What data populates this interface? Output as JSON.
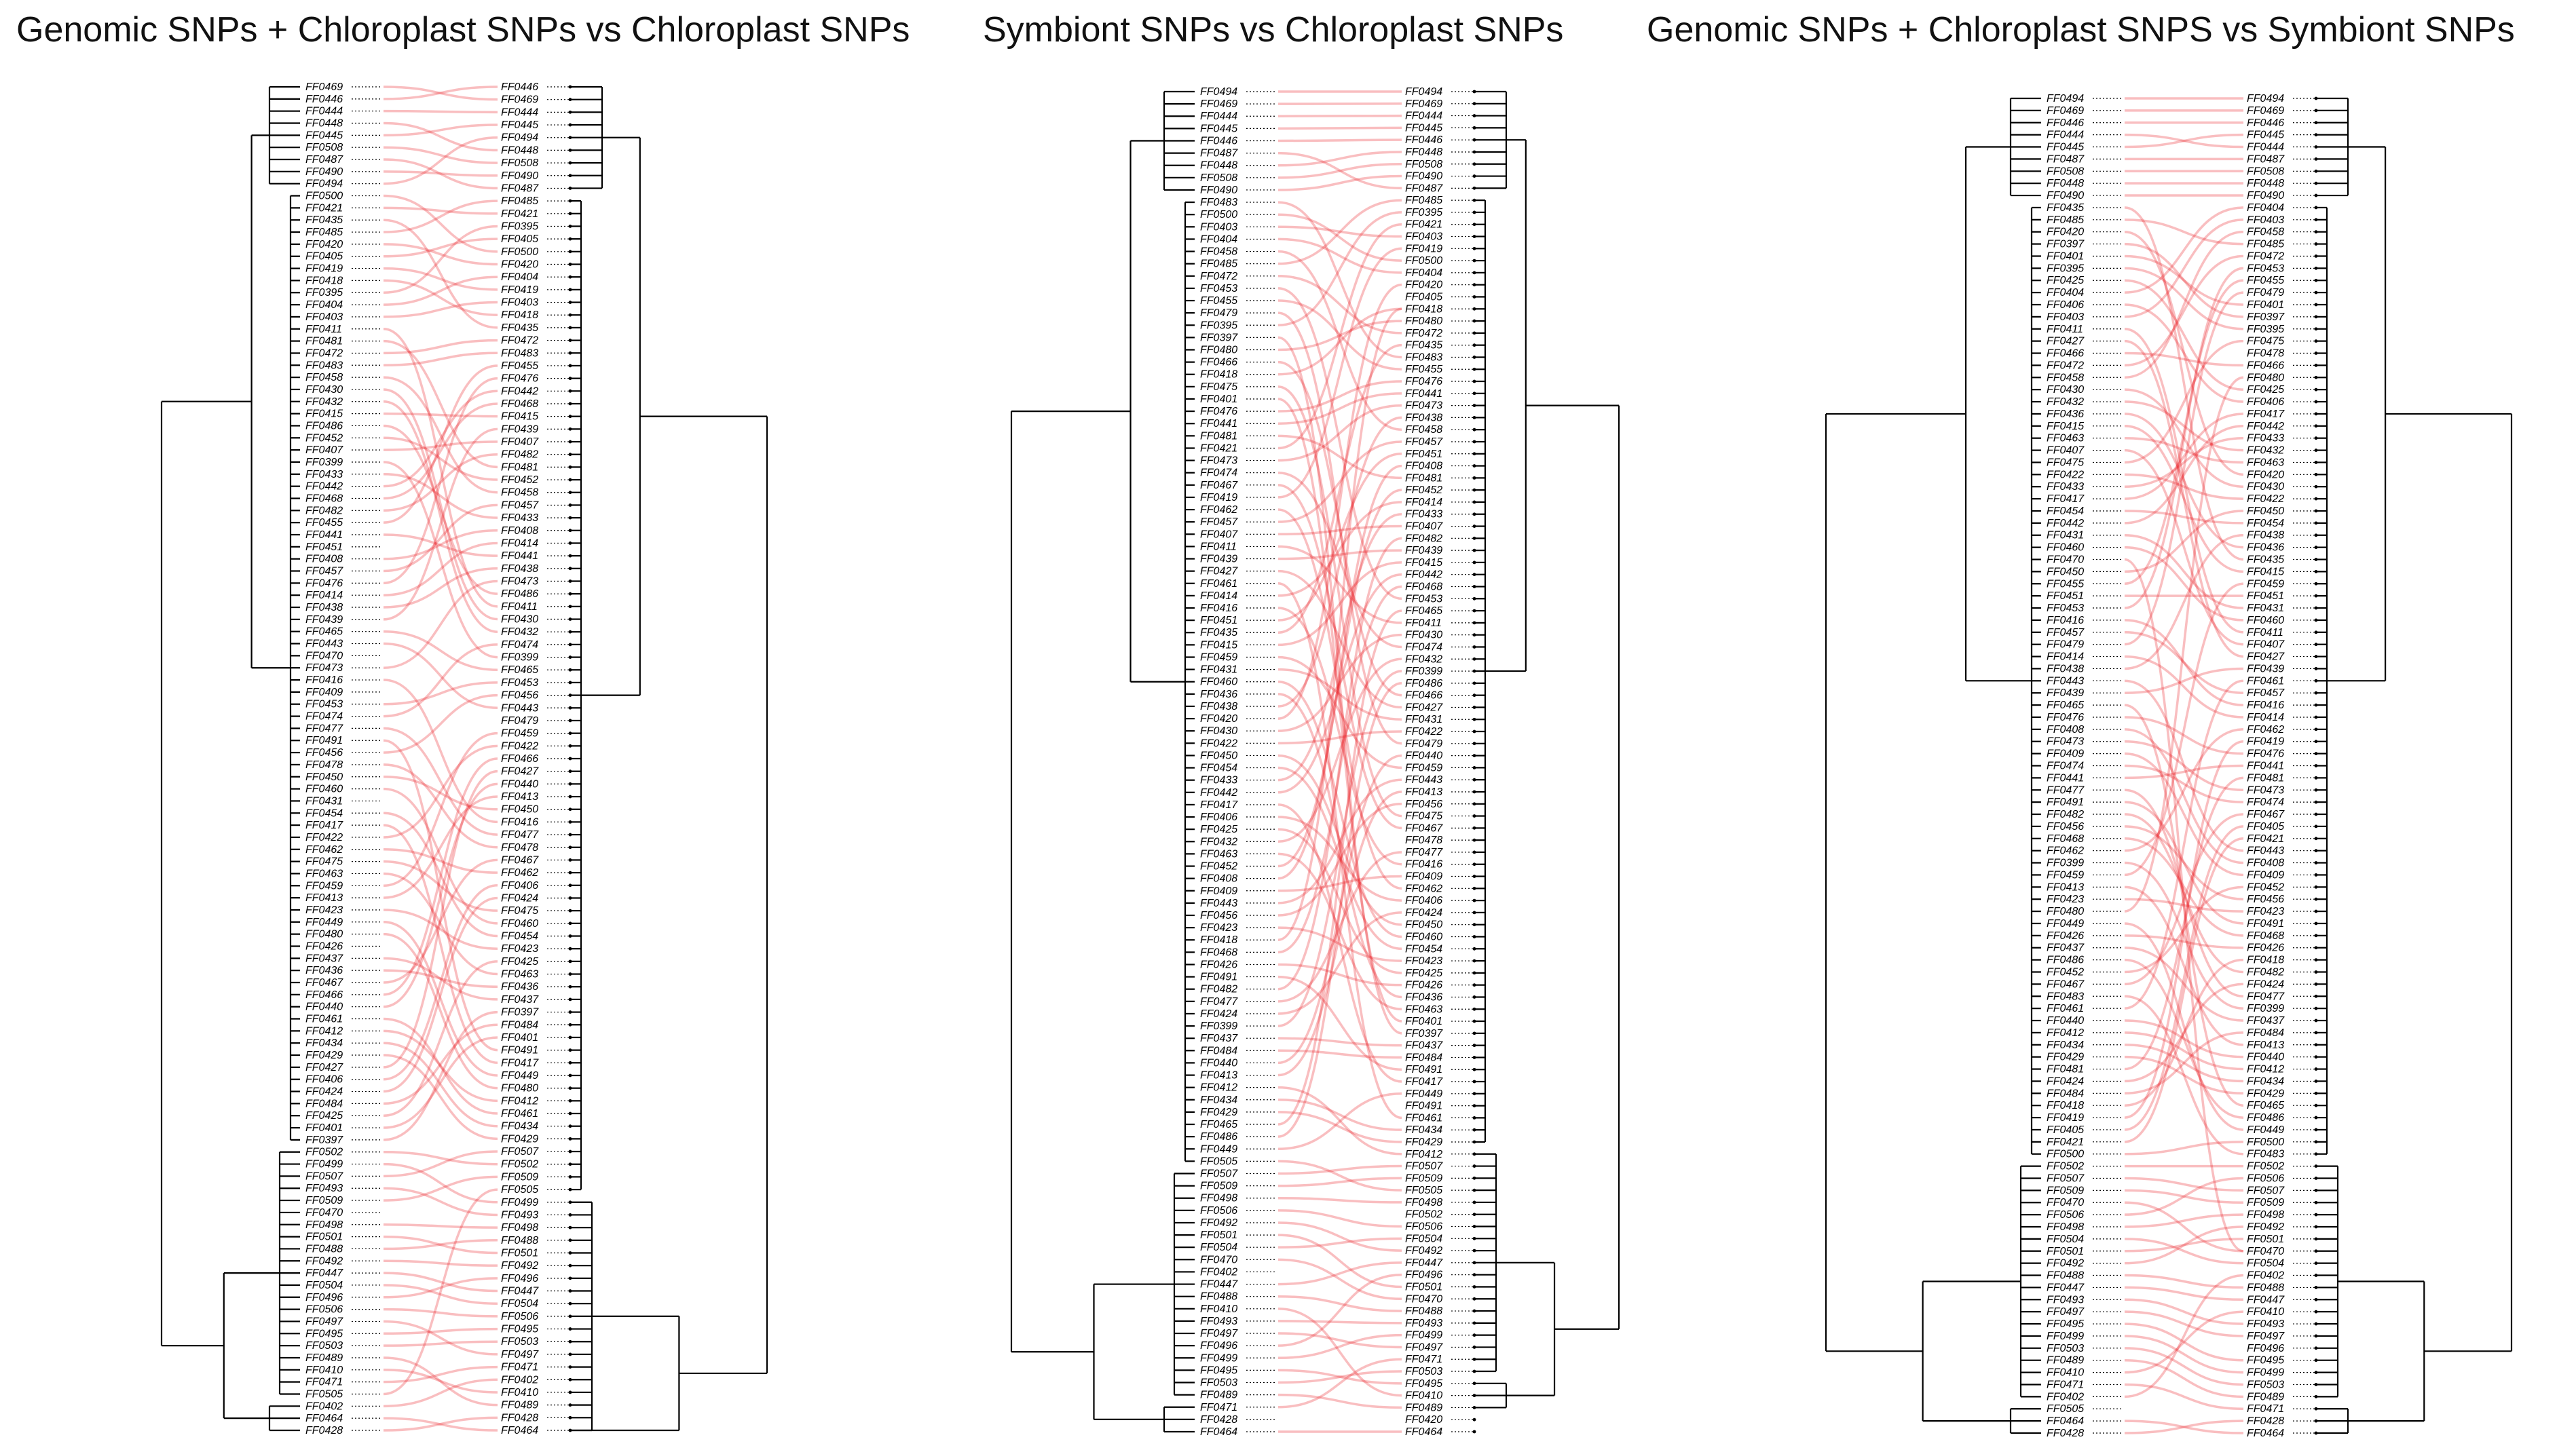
{
  "titles": [
    "Genomic SNPs + Chloroplast SNPs vs Chloroplast SNPs",
    "Symbiont SNPs vs Chloroplast SNPs",
    "Genomic SNPs + Chloroplast SNPS vs Symbiont SNPs"
  ],
  "colors": {
    "connector": "#e8141b",
    "tree": "#000000"
  },
  "panels": [
    {
      "left": [
        "FF0469",
        "FF0446",
        "FF0444",
        "FF0448",
        "FF0445",
        "FF0508",
        "FF0487",
        "FF0490",
        "FF0494",
        "FF0500",
        "FF0421",
        "FF0435",
        "FF0485",
        "FF0420",
        "FF0405",
        "FF0419",
        "FF0418",
        "FF0395",
        "FF0404",
        "FF0403",
        "FF0411",
        "FF0481",
        "FF0472",
        "FF0483",
        "FF0458",
        "FF0430",
        "FF0432",
        "FF0415",
        "FF0486",
        "FF0452",
        "FF0407",
        "FF0399",
        "FF0433",
        "FF0442",
        "FF0468",
        "FF0482",
        "FF0455",
        "FF0441",
        "FF0451",
        "FF0408",
        "FF0457",
        "FF0476",
        "FF0414",
        "FF0438",
        "FF0439",
        "FF0465",
        "FF0443",
        "FF0470",
        "FF0473",
        "FF0416",
        "FF0409",
        "FF0453",
        "FF0474",
        "FF0477",
        "FF0491",
        "FF0456",
        "FF0478",
        "FF0450",
        "FF0460",
        "FF0431",
        "FF0454",
        "FF0417",
        "FF0422",
        "FF0462",
        "FF0475",
        "FF0463",
        "FF0459",
        "FF0413",
        "FF0423",
        "FF0449",
        "FF0480",
        "FF0426",
        "FF0437",
        "FF0436",
        "FF0467",
        "FF0466",
        "FF0440",
        "FF0461",
        "FF0412",
        "FF0434",
        "FF0429",
        "FF0427",
        "FF0406",
        "FF0424",
        "FF0484",
        "FF0425",
        "FF0401",
        "FF0397",
        "FF0502",
        "FF0499",
        "FF0507",
        "FF0493",
        "FF0509",
        "FF0470",
        "FF0498",
        "FF0501",
        "FF0488",
        "FF0492",
        "FF0447",
        "FF0504",
        "FF0496",
        "FF0506",
        "FF0497",
        "FF0495",
        "FF0503",
        "FF0489",
        "FF0410",
        "FF0471",
        "FF0505",
        "FF0402",
        "FF0464",
        "FF0428"
      ],
      "right": [
        "FF0446",
        "FF0469",
        "FF0444",
        "FF0445",
        "FF0494",
        "FF0448",
        "FF0508",
        "FF0490",
        "FF0487",
        "FF0485",
        "FF0421",
        "FF0395",
        "FF0405",
        "FF0500",
        "FF0420",
        "FF0404",
        "FF0419",
        "FF0403",
        "FF0418",
        "FF0435",
        "FF0472",
        "FF0483",
        "FF0455",
        "FF0476",
        "FF0442",
        "FF0468",
        "FF0415",
        "FF0439",
        "FF0407",
        "FF0482",
        "FF0481",
        "FF0452",
        "FF0458",
        "FF0457",
        "FF0433",
        "FF0408",
        "FF0414",
        "FF0441",
        "FF0438",
        "FF0473",
        "FF0486",
        "FF0411",
        "FF0430",
        "FF0432",
        "FF0474",
        "FF0399",
        "FF0465",
        "FF0453",
        "FF0456",
        "FF0443",
        "FF0479",
        "FF0459",
        "FF0422",
        "FF0466",
        "FF0427",
        "FF0440",
        "FF0413",
        "FF0450",
        "FF0416",
        "FF0477",
        "FF0478",
        "FF0467",
        "FF0462",
        "FF0406",
        "FF0424",
        "FF0475",
        "FF0460",
        "FF0454",
        "FF0423",
        "FF0425",
        "FF0463",
        "FF0436",
        "FF0437",
        "FF0397",
        "FF0484",
        "FF0401",
        "FF0491",
        "FF0417",
        "FF0449",
        "FF0480",
        "FF0412",
        "FF0461",
        "FF0434",
        "FF0429",
        "FF0507",
        "FF0502",
        "FF0509",
        "FF0505",
        "FF0499",
        "FF0493",
        "FF0498",
        "FF0488",
        "FF0501",
        "FF0492",
        "FF0496",
        "FF0447",
        "FF0504",
        "FF0506",
        "FF0495",
        "FF0503",
        "FF0497",
        "FF0471",
        "FF0402",
        "FF0410",
        "FF0489",
        "FF0428",
        "FF0464"
      ]
    },
    {
      "left": [
        "FF0494",
        "FF0469",
        "FF0444",
        "FF0445",
        "FF0446",
        "FF0487",
        "FF0448",
        "FF0508",
        "FF0490",
        "FF0483",
        "FF0500",
        "FF0403",
        "FF0404",
        "FF0458",
        "FF0485",
        "FF0472",
        "FF0453",
        "FF0455",
        "FF0479",
        "FF0395",
        "FF0397",
        "FF0480",
        "FF0466",
        "FF0418",
        "FF0475",
        "FF0401",
        "FF0476",
        "FF0441",
        "FF0481",
        "FF0421",
        "FF0473",
        "FF0474",
        "FF0467",
        "FF0419",
        "FF0462",
        "FF0457",
        "FF0407",
        "FF0411",
        "FF0439",
        "FF0427",
        "FF0461",
        "FF0414",
        "FF0416",
        "FF0451",
        "FF0435",
        "FF0415",
        "FF0459",
        "FF0431",
        "FF0460",
        "FF0436",
        "FF0438",
        "FF0420",
        "FF0430",
        "FF0422",
        "FF0450",
        "FF0454",
        "FF0433",
        "FF0442",
        "FF0417",
        "FF0406",
        "FF0425",
        "FF0432",
        "FF0463",
        "FF0452",
        "FF0408",
        "FF0409",
        "FF0443",
        "FF0456",
        "FF0423",
        "FF0418",
        "FF0468",
        "FF0426",
        "FF0491",
        "FF0482",
        "FF0477",
        "FF0424",
        "FF0399",
        "FF0437",
        "FF0484",
        "FF0440",
        "FF0413",
        "FF0412",
        "FF0434",
        "FF0429",
        "FF0465",
        "FF0486",
        "FF0449",
        "FF0505",
        "FF0507",
        "FF0509",
        "FF0498",
        "FF0506",
        "FF0492",
        "FF0501",
        "FF0504",
        "FF0470",
        "FF0402",
        "FF0447",
        "FF0488",
        "FF0410",
        "FF0493",
        "FF0497",
        "FF0496",
        "FF0499",
        "FF0495",
        "FF0503",
        "FF0489",
        "FF0471",
        "FF0428",
        "FF0464"
      ],
      "right": [
        "FF0494",
        "FF0469",
        "FF0444",
        "FF0445",
        "FF0446",
        "FF0448",
        "FF0508",
        "FF0490",
        "FF0487",
        "FF0485",
        "FF0395",
        "FF0421",
        "FF0403",
        "FF0419",
        "FF0500",
        "FF0404",
        "FF0420",
        "FF0405",
        "FF0418",
        "FF0480",
        "FF0472",
        "FF0435",
        "FF0483",
        "FF0455",
        "FF0476",
        "FF0441",
        "FF0473",
        "FF0438",
        "FF0458",
        "FF0457",
        "FF0451",
        "FF0408",
        "FF0481",
        "FF0452",
        "FF0414",
        "FF0433",
        "FF0407",
        "FF0482",
        "FF0439",
        "FF0415",
        "FF0442",
        "FF0468",
        "FF0453",
        "FF0465",
        "FF0411",
        "FF0430",
        "FF0474",
        "FF0432",
        "FF0399",
        "FF0486",
        "FF0466",
        "FF0427",
        "FF0431",
        "FF0422",
        "FF0479",
        "FF0440",
        "FF0459",
        "FF0443",
        "FF0413",
        "FF0456",
        "FF0475",
        "FF0467",
        "FF0478",
        "FF0477",
        "FF0416",
        "FF0409",
        "FF0462",
        "FF0406",
        "FF0424",
        "FF0450",
        "FF0460",
        "FF0454",
        "FF0423",
        "FF0425",
        "FF0426",
        "FF0436",
        "FF0463",
        "FF0401",
        "FF0397",
        "FF0437",
        "FF0484",
        "FF0491",
        "FF0417",
        "FF0449",
        "FF0491",
        "FF0461",
        "FF0434",
        "FF0429",
        "FF0412",
        "FF0507",
        "FF0509",
        "FF0505",
        "FF0498",
        "FF0502",
        "FF0506",
        "FF0504",
        "FF0492",
        "FF0447",
        "FF0496",
        "FF0501",
        "FF0470",
        "FF0488",
        "FF0493",
        "FF0499",
        "FF0497",
        "FF0471",
        "FF0503",
        "FF0495",
        "FF0410",
        "FF0489",
        "FF0420",
        "FF0464"
      ]
    },
    {
      "left": [
        "FF0494",
        "FF0469",
        "FF0446",
        "FF0444",
        "FF0445",
        "FF0487",
        "FF0508",
        "FF0448",
        "FF0490",
        "FF0435",
        "FF0485",
        "FF0420",
        "FF0397",
        "FF0401",
        "FF0395",
        "FF0425",
        "FF0404",
        "FF0406",
        "FF0403",
        "FF0411",
        "FF0427",
        "FF0466",
        "FF0472",
        "FF0458",
        "FF0430",
        "FF0432",
        "FF0436",
        "FF0415",
        "FF0463",
        "FF0407",
        "FF0475",
        "FF0422",
        "FF0433",
        "FF0417",
        "FF0454",
        "FF0442",
        "FF0431",
        "FF0460",
        "FF0470",
        "FF0450",
        "FF0455",
        "FF0451",
        "FF0453",
        "FF0416",
        "FF0457",
        "FF0479",
        "FF0414",
        "FF0438",
        "FF0443",
        "FF0439",
        "FF0465",
        "FF0476",
        "FF0408",
        "FF0473",
        "FF0409",
        "FF0474",
        "FF0441",
        "FF0477",
        "FF0491",
        "FF0482",
        "FF0456",
        "FF0468",
        "FF0462",
        "FF0399",
        "FF0459",
        "FF0413",
        "FF0423",
        "FF0480",
        "FF0449",
        "FF0426",
        "FF0437",
        "FF0486",
        "FF0452",
        "FF0467",
        "FF0483",
        "FF0461",
        "FF0440",
        "FF0412",
        "FF0434",
        "FF0429",
        "FF0481",
        "FF0424",
        "FF0484",
        "FF0418",
        "FF0419",
        "FF0405",
        "FF0421",
        "FF0500",
        "FF0502",
        "FF0507",
        "FF0509",
        "FF0470",
        "FF0506",
        "FF0498",
        "FF0504",
        "FF0501",
        "FF0492",
        "FF0488",
        "FF0447",
        "FF0493",
        "FF0497",
        "FF0495",
        "FF0499",
        "FF0503",
        "FF0489",
        "FF0410",
        "FF0471",
        "FF0402",
        "FF0505",
        "FF0464",
        "FF0428"
      ],
      "right": [
        "FF0494",
        "FF0469",
        "FF0446",
        "FF0445",
        "FF0444",
        "FF0487",
        "FF0508",
        "FF0448",
        "FF0490",
        "FF0404",
        "FF0403",
        "FF0458",
        "FF0485",
        "FF0472",
        "FF0453",
        "FF0455",
        "FF0479",
        "FF0401",
        "FF0397",
        "FF0395",
        "FF0475",
        "FF0478",
        "FF0466",
        "FF0480",
        "FF0425",
        "FF0406",
        "FF0417",
        "FF0442",
        "FF0433",
        "FF0432",
        "FF0463",
        "FF0420",
        "FF0430",
        "FF0422",
        "FF0450",
        "FF0454",
        "FF0438",
        "FF0436",
        "FF0435",
        "FF0415",
        "FF0459",
        "FF0451",
        "FF0431",
        "FF0460",
        "FF0411",
        "FF0407",
        "FF0427",
        "FF0439",
        "FF0461",
        "FF0457",
        "FF0416",
        "FF0414",
        "FF0462",
        "FF0419",
        "FF0476",
        "FF0441",
        "FF0481",
        "FF0473",
        "FF0474",
        "FF0467",
        "FF0405",
        "FF0421",
        "FF0443",
        "FF0408",
        "FF0409",
        "FF0452",
        "FF0456",
        "FF0423",
        "FF0491",
        "FF0468",
        "FF0426",
        "FF0418",
        "FF0482",
        "FF0424",
        "FF0477",
        "FF0399",
        "FF0437",
        "FF0484",
        "FF0413",
        "FF0440",
        "FF0412",
        "FF0434",
        "FF0429",
        "FF0465",
        "FF0486",
        "FF0449",
        "FF0500",
        "FF0483",
        "FF0502",
        "FF0506",
        "FF0507",
        "FF0509",
        "FF0498",
        "FF0492",
        "FF0501",
        "FF0470",
        "FF0504",
        "FF0402",
        "FF0488",
        "FF0447",
        "FF0410",
        "FF0493",
        "FF0497",
        "FF0496",
        "FF0495",
        "FF0499",
        "FF0503",
        "FF0489",
        "FF0471",
        "FF0428",
        "FF0464"
      ]
    }
  ]
}
